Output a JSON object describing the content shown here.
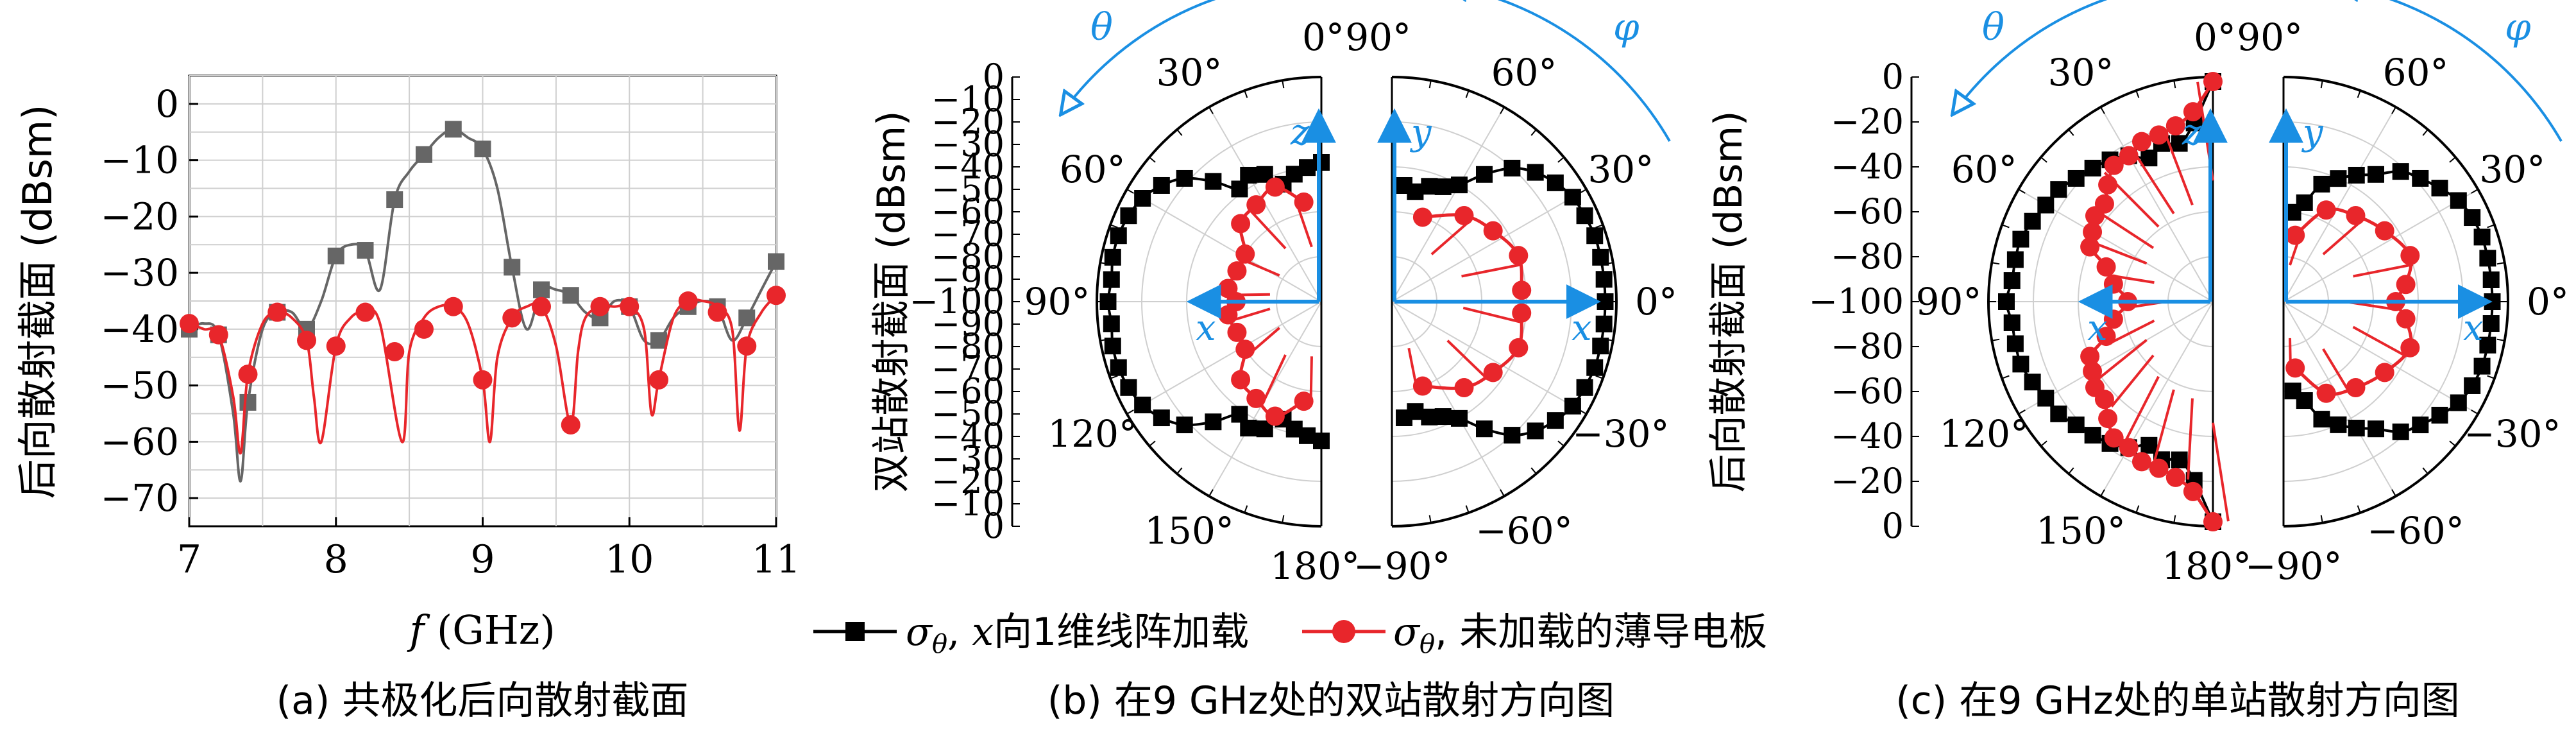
{
  "colors": {
    "black_series": "#000000",
    "red_series": "#e8262b",
    "gray_series": "#666666",
    "blue_annotation": "#1a8fe3",
    "grid": "#cfcfcf"
  },
  "legend": {
    "black_prefix": "σ",
    "black_sub": "θ",
    "black_mid": ", ",
    "black_var": "x",
    "black_text": "向1维线阵加载",
    "red_prefix": "σ",
    "red_sub": "θ",
    "red_text": ", 未加载的薄导电板"
  },
  "captions": {
    "a": "(a) 共极化后向散射截面",
    "b": "(b) 在9 GHz处的双站散射方向图",
    "c": "(c) 在9 GHz处的单站散射方向图"
  },
  "chart_data": [
    {
      "type": "line",
      "panel": "a",
      "ylabel": "后向散射截面 (dBsm)",
      "xlabel_var": "f",
      "xlabel_unit": " (GHz)",
      "xlim": [
        7,
        11
      ],
      "ylim": [
        -75,
        5
      ],
      "xticks": [
        7,
        8,
        9,
        10,
        11
      ],
      "xtick_labels": [
        "7",
        "8",
        "9",
        "10",
        "11"
      ],
      "yticks": [
        0,
        -10,
        -20,
        -30,
        -40,
        -50,
        -60,
        -70
      ],
      "ytick_labels": [
        "0",
        "−10",
        "−20",
        "−30",
        "−40",
        "−50",
        "−60",
        "−70"
      ],
      "grid": true,
      "series": [
        {
          "color_key": "gray_series",
          "marker": "square",
          "x": [
            7.0,
            7.2,
            7.4,
            7.6,
            7.8,
            8.0,
            8.2,
            8.4,
            8.6,
            8.8,
            9.0,
            9.2,
            9.4,
            9.6,
            9.8,
            10.0,
            10.2,
            10.4,
            10.6,
            10.8,
            11.0
          ],
          "y": [
            -40,
            -41,
            -53,
            -37,
            -40,
            -27,
            -26,
            -17,
            -9,
            -4.5,
            -8,
            -29,
            -33,
            -34,
            -38,
            -36,
            -42,
            -36,
            -36,
            -38,
            -28
          ],
          "curve_x": [
            7.0,
            7.1,
            7.2,
            7.3,
            7.35,
            7.4,
            7.5,
            7.6,
            7.7,
            7.8,
            7.9,
            8.0,
            8.1,
            8.2,
            8.3,
            8.4,
            8.5,
            8.6,
            8.7,
            8.8,
            8.9,
            9.0,
            9.1,
            9.2,
            9.3,
            9.4,
            9.5,
            9.6,
            9.7,
            9.8,
            9.9,
            10.0,
            10.1,
            10.2,
            10.3,
            10.4,
            10.5,
            10.6,
            10.7,
            10.8,
            10.9,
            11.0
          ],
          "curve_y": [
            -40,
            -39,
            -41,
            -55,
            -67,
            -53,
            -40,
            -37,
            -37,
            -40,
            -35,
            -27,
            -25,
            -26,
            -33,
            -17,
            -12,
            -9,
            -6,
            -4.5,
            -6,
            -8,
            -15,
            -29,
            -40,
            -33,
            -33,
            -34,
            -37,
            -38,
            -35,
            -36,
            -42,
            -42,
            -38,
            -36,
            -35,
            -36,
            -42,
            -38,
            -33,
            -28
          ]
        },
        {
          "color_key": "red_series",
          "marker": "circle",
          "x": [
            7.0,
            7.2,
            7.4,
            7.6,
            7.8,
            8.0,
            8.2,
            8.4,
            8.6,
            8.8,
            9.0,
            9.2,
            9.4,
            9.6,
            9.8,
            10.0,
            10.2,
            10.4,
            10.6,
            10.8,
            11.0
          ],
          "y": [
            -39,
            -41,
            -48,
            -37,
            -42,
            -43,
            -37,
            -44,
            -40,
            -36,
            -49,
            -38,
            -36,
            -57,
            -36,
            -36,
            -49,
            -35,
            -37,
            -43,
            -34
          ],
          "curve_x": [
            7.0,
            7.1,
            7.2,
            7.3,
            7.35,
            7.4,
            7.5,
            7.6,
            7.7,
            7.8,
            7.85,
            7.9,
            8.0,
            8.1,
            8.2,
            8.3,
            8.45,
            8.5,
            8.6,
            8.7,
            8.8,
            8.9,
            9.0,
            9.05,
            9.1,
            9.2,
            9.3,
            9.4,
            9.5,
            9.6,
            9.65,
            9.7,
            9.8,
            9.9,
            10.0,
            10.1,
            10.15,
            10.2,
            10.3,
            10.4,
            10.5,
            10.6,
            10.7,
            10.75,
            10.8,
            10.9,
            11.0
          ],
          "curve_y": [
            -39,
            -40,
            -41,
            -52,
            -62,
            -48,
            -39,
            -37,
            -38,
            -42,
            -52,
            -60,
            -43,
            -38,
            -37,
            -39,
            -60,
            -44,
            -38,
            -36,
            -36,
            -39,
            -49,
            -60,
            -45,
            -38,
            -36,
            -36,
            -43,
            -57,
            -44,
            -38,
            -36,
            -36,
            -36,
            -40,
            -55,
            -49,
            -38,
            -35,
            -35,
            -36,
            -40,
            -58,
            -43,
            -37,
            -34
          ]
        }
      ]
    },
    {
      "type": "polar",
      "panel": "b",
      "ylabel": "双站散射截面 (dBsm)",
      "rlim": [
        -100,
        0
      ],
      "r_tick_labels_top": [
        "0",
        "−10",
        "−20",
        "−30",
        "−40",
        "−50",
        "−60",
        "−70",
        "−80",
        "−90",
        "−100"
      ],
      "r_tick_labels_bottom": [
        "−90",
        "−80",
        "−70",
        "−60",
        "−50",
        "−40",
        "−30",
        "−20",
        "−10",
        "0"
      ],
      "left_half": {
        "axis_var": "θ",
        "angle_labels": [
          "0°",
          "30°",
          "60°",
          "90°",
          "120°",
          "150°",
          "180°"
        ],
        "angles_deg": [
          0,
          30,
          60,
          90,
          120,
          150,
          180
        ],
        "series": [
          {
            "color_key": "black_series",
            "angle_deg": [
              0,
              6,
              12,
              18,
              24,
              30,
              36,
              42,
              48,
              54,
              60,
              66,
              72,
              78,
              84,
              90,
              96,
              102,
              108,
              114,
              120,
              126,
              132,
              138,
              144,
              150,
              156,
              162,
              168,
              174,
              180
            ],
            "r_dbsm": [
              -38,
              -40,
              -42,
              -45,
              -38,
              -35,
              -38,
              -28,
              -18,
              -12,
              -8,
              -6,
              -5,
              -5,
              -6,
              -5,
              -6,
              -5,
              -5,
              -6,
              -8,
              -12,
              -18,
              -28,
              -38,
              -35,
              -38,
              -45,
              -42,
              -40,
              -38
            ]
          },
          {
            "color_key": "red_series",
            "angle_deg": [
              10,
              22,
              34,
              46,
              58,
              70,
              82,
              90,
              98,
              110,
              122,
              134,
              146,
              158,
              170
            ],
            "r_dbsm": [
              -55,
              -45,
              -48,
              -50,
              -60,
              -60,
              -58,
              -62,
              -58,
              -60,
              -60,
              -50,
              -48,
              -45,
              -55
            ]
          }
        ]
      },
      "right_half": {
        "axis_var": "φ",
        "angle_labels": [
          "90°",
          "60°",
          "30°",
          "0°",
          "−30°",
          "−60°",
          "−90°"
        ],
        "angles_deg": [
          90,
          60,
          30,
          0,
          -30,
          -60,
          -90
        ],
        "series": [
          {
            "color_key": "black_series",
            "angle_deg": [
              -84,
              -78,
              -72,
              -66,
              -60,
              -54,
              -48,
              -42,
              -36,
              -30,
              -24,
              -18,
              -12,
              -6,
              0,
              6,
              12,
              18,
              24,
              30,
              36,
              42,
              48,
              54,
              60,
              66,
              72,
              78,
              84
            ],
            "r_dbsm": [
              -48,
              -50,
              -46,
              -44,
              -40,
              -30,
              -20,
              -14,
              -10,
              -7,
              -6,
              -5,
              -5,
              -5,
              -5,
              -5,
              -5,
              -5,
              -6,
              -7,
              -10,
              -14,
              -20,
              -30,
              -40,
              -44,
              -46,
              -50,
              -48
            ]
          },
          {
            "color_key": "red_series",
            "angle_deg": [
              -70,
              -50,
              -35,
              -20,
              -5,
              5,
              20,
              35,
              50,
              70
            ],
            "r_dbsm": [
              -60,
              -50,
              -45,
              -40,
              -42,
              -42,
              -40,
              -45,
              -50,
              -60
            ]
          }
        ]
      },
      "axis_labels": [
        "z",
        "x",
        "y",
        "x"
      ]
    },
    {
      "type": "polar",
      "panel": "c",
      "ylabel": "后向散射截面 (dBsm)",
      "rlim": [
        -100,
        0
      ],
      "r_tick_labels_top": [
        "0",
        "−20",
        "−40",
        "−60",
        "−80",
        "−100"
      ],
      "r_tick_labels_bottom": [
        "−80",
        "−60",
        "−40",
        "−20",
        "0"
      ],
      "left_half": {
        "axis_var": "θ",
        "angle_labels": [
          "0°",
          "30°",
          "60°",
          "90°",
          "120°",
          "150°",
          "180°"
        ],
        "angles_deg": [
          0,
          30,
          60,
          90,
          120,
          150,
          180
        ],
        "series": [
          {
            "color_key": "black_series",
            "angle_deg": [
              0,
              6,
              12,
              18,
              24,
              30,
              36,
              42,
              48,
              54,
              60,
              66,
              72,
              78,
              84,
              90,
              96,
              102,
              108,
              114,
              120,
              126,
              132,
              138,
              144,
              150,
              156,
              162,
              168,
              174,
              180
            ],
            "r_dbsm": [
              -2,
              -20,
              -28,
              -26,
              -30,
              -25,
              -22,
              -20,
              -18,
              -15,
              -14,
              -12,
              -10,
              -10,
              -10,
              -8,
              -10,
              -10,
              -10,
              -12,
              -14,
              -15,
              -18,
              -20,
              -22,
              -25,
              -30,
              -26,
              -28,
              -20,
              -2
            ]
          },
          {
            "color_key": "red_series",
            "angle_deg": [
              0,
              6,
              12,
              18,
              24,
              30,
              36,
              42,
              48,
              54,
              60,
              66,
              72,
              80,
              90,
              100,
              108,
              114,
              120,
              126,
              132,
              138,
              144,
              150,
              156,
              162,
              168,
              174,
              180
            ],
            "r_dbsm": [
              -2,
              -15,
              -20,
              -22,
              -22,
              -25,
              -25,
              -30,
              -35,
              -35,
              -38,
              -40,
              -50,
              -55,
              -62,
              -55,
              -50,
              -40,
              -38,
              -35,
              -35,
              -30,
              -25,
              -25,
              -22,
              -22,
              -20,
              -15,
              -2
            ]
          }
        ]
      },
      "right_half": {
        "axis_var": "φ",
        "angle_labels": [
          "90°",
          "60°",
          "30°",
          "0°",
          "−30°",
          "−60°",
          "−90°"
        ],
        "angles_deg": [
          90,
          60,
          30,
          0,
          -30,
          -60,
          -90
        ],
        "series": [
          {
            "color_key": "black_series",
            "angle_deg": [
              -84,
              -78,
              -72,
              -66,
              -60,
              -54,
              -48,
              -42,
              -36,
              -30,
              -24,
              -18,
              -12,
              -6,
              0,
              6,
              12,
              18,
              24,
              30,
              36,
              42,
              48,
              54,
              60,
              66,
              72,
              78,
              84
            ],
            "r_dbsm": [
              -60,
              -55,
              -45,
              -40,
              -35,
              -30,
              -22,
              -18,
              -14,
              -10,
              -8,
              -7,
              -7,
              -7,
              -7,
              -7,
              -7,
              -7,
              -8,
              -10,
              -14,
              -18,
              -22,
              -30,
              -35,
              -40,
              -45,
              -55,
              -60
            ]
          },
          {
            "color_key": "red_series",
            "angle_deg": [
              -80,
              -65,
              -50,
              -35,
              -20,
              -8,
              0,
              8,
              20,
              35,
              50,
              65,
              80
            ],
            "r_dbsm": [
              -70,
              -55,
              -50,
              -45,
              -40,
              -45,
              -50,
              -45,
              -40,
              -45,
              -50,
              -55,
              -70
            ]
          }
        ]
      },
      "axis_labels": [
        "z",
        "x",
        "y",
        "x"
      ]
    }
  ]
}
